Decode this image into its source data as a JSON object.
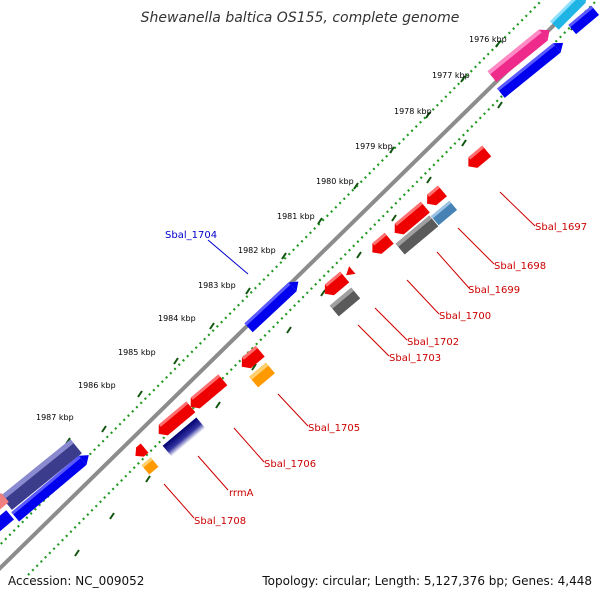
{
  "title": "Shewanella baltica OS155, complete genome",
  "accession": "Accession: NC_009052",
  "stats": "Topology: circular; Length: 5,127,376 bp; Genes: 4,448",
  "ticks": [
    "1976 kbp",
    "1977 kbp",
    "1978 kbp",
    "1979 kbp",
    "1980 kbp",
    "1981 kbp",
    "1982 kbp",
    "1983 kbp",
    "1984 kbp",
    "1985 kbp",
    "1986 kbp",
    "1987 kbp"
  ],
  "gene_labels": {
    "g1697": "Sbal_1697",
    "g1698": "Sbal_1698",
    "g1699": "Sbal_1699",
    "g1700": "Sbal_1700",
    "g1702": "Sbal_1702",
    "g1703": "Sbal_1703",
    "g1704": "Sbal_1704",
    "g1705": "Sbal_1705",
    "g1706": "Sbal_1706",
    "rrma": "rrmA",
    "g1708": "Sbal_1708"
  },
  "colors": {
    "cds_forward": "#0000ee",
    "cds_reverse": "#ee0000",
    "trna": "#ff9900",
    "rrna": "#5a5a5a",
    "other": "#4682b4",
    "pink": "#ee2a8a",
    "cyan": "#1eb4e6",
    "purple": "#3c3c8c",
    "backbone": "#8c8c8c",
    "tick_dots": "#229922",
    "label_red": "#cc0000",
    "label_blue": "#0000cc"
  }
}
